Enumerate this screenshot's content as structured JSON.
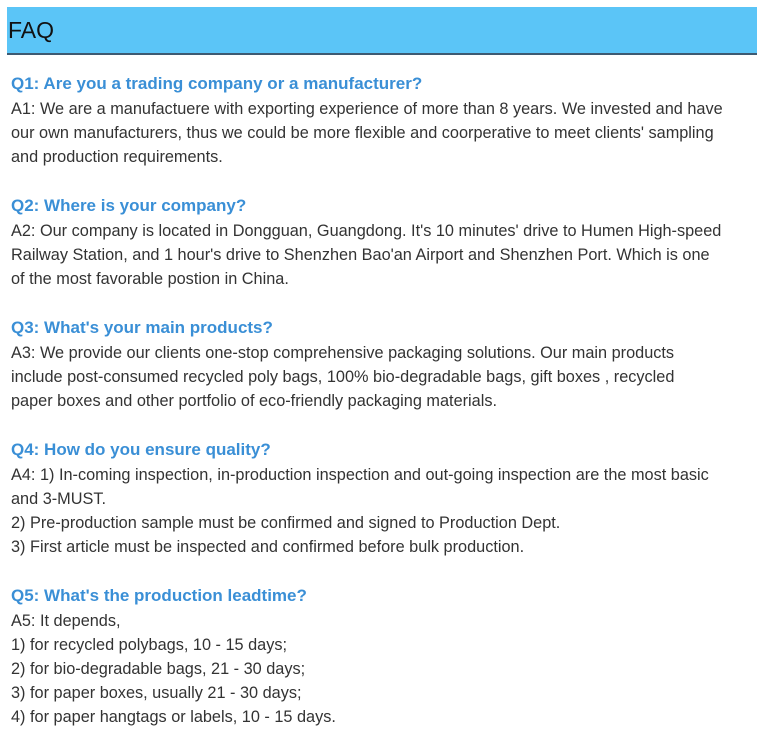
{
  "header": {
    "title": "FAQ"
  },
  "colors": {
    "header_bg": "#5bc5f7",
    "question": "#3a8fd6",
    "answer": "#333333"
  },
  "faq": [
    {
      "question": "Q1: Are you a trading company or a manufacturer?",
      "answer_lines": [
        "A1: We are a manufactuere with exporting experience of more than 8 years. We invested and have",
        "our own manufacturers, thus we could be more flexible and coorperative to meet clients' sampling",
        "and production requirements."
      ]
    },
    {
      "question": "Q2: Where is your company?",
      "answer_lines": [
        "A2: Our company is located in Dongguan, Guangdong. It's 10 minutes' drive to Humen High-speed",
        "Railway Station, and 1 hour's drive to Shenzhen Bao'an Airport and Shenzhen Port. Which is one",
        "of the most favorable postion in China."
      ]
    },
    {
      "question": "Q3: What's your main products?",
      "answer_lines": [
        "A3: We provide our clients one-stop comprehensive packaging solutions. Our main products",
        "include post-consumed recycled poly bags, 100% bio-degradable bags, gift boxes , recycled",
        "paper boxes and other portfolio of eco-friendly packaging materials."
      ]
    },
    {
      "question": "Q4: How do you ensure quality?",
      "answer_lines": [
        "A4: 1) In-coming inspection, in-production inspection and out-going inspection are the most basic",
        "and 3-MUST.",
        "2) Pre-production sample must be confirmed and signed to Production Dept.",
        "3) First article must be inspected and confirmed before bulk production."
      ]
    },
    {
      "question": "Q5: What's the production leadtime?",
      "answer_lines": [
        "A5: It depends,",
        "1) for recycled polybags, 10 - 15 days;",
        "2) for bio-degradable bags, 21 - 30 days;",
        "3) for paper boxes, usually 21 - 30 days;",
        "4) for paper hangtags or labels, 10 - 15 days."
      ]
    }
  ]
}
